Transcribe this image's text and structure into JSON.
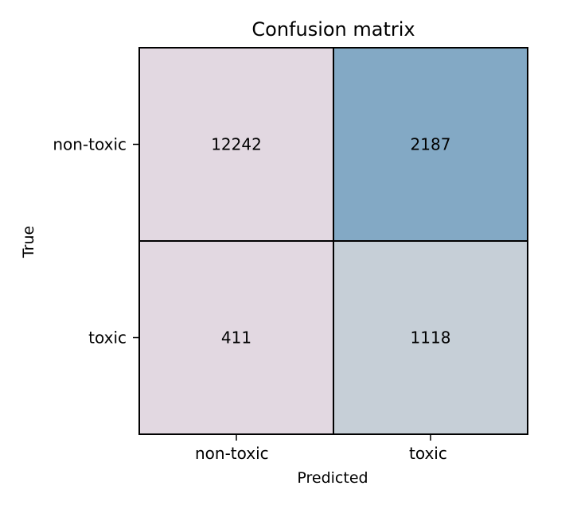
{
  "chart_data": {
    "type": "heatmap",
    "title": "Confusion matrix",
    "xlabel": "Predicted",
    "ylabel": "True",
    "x_categories": [
      "non-toxic",
      "toxic"
    ],
    "y_categories": [
      "non-toxic",
      "toxic"
    ],
    "values": [
      [
        12242,
        2187
      ],
      [
        411,
        1118
      ]
    ],
    "cell_colors": [
      [
        "#e2d8e1",
        "#83a9c5"
      ],
      [
        "#e2d8e1",
        "#c6cfd7"
      ]
    ],
    "grid": false,
    "legend": "none"
  }
}
